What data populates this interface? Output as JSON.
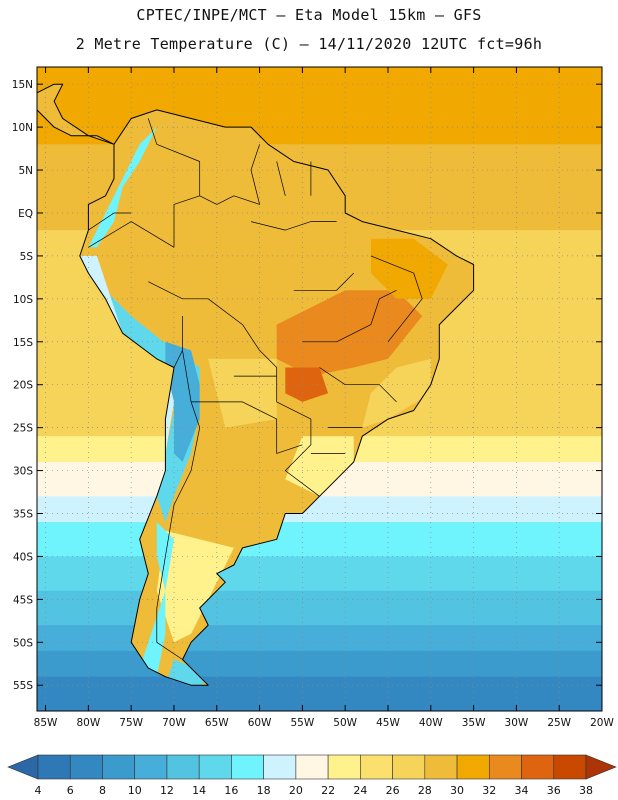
{
  "title_line1": "CPTEC/INPE/MCT –  Eta Model 15km – GFS",
  "title_line2": "2 Metre Temperature (C) – 14/11/2020 12UTC fct=96h",
  "map": {
    "lon_range": [
      -86,
      -20
    ],
    "lat_range": [
      -58,
      17
    ],
    "x_ticks": [
      {
        "lon": -85,
        "label": "85W"
      },
      {
        "lon": -80,
        "label": "80W"
      },
      {
        "lon": -75,
        "label": "75W"
      },
      {
        "lon": -70,
        "label": "70W"
      },
      {
        "lon": -65,
        "label": "65W"
      },
      {
        "lon": -60,
        "label": "60W"
      },
      {
        "lon": -55,
        "label": "55W"
      },
      {
        "lon": -50,
        "label": "50W"
      },
      {
        "lon": -45,
        "label": "45W"
      },
      {
        "lon": -40,
        "label": "40W"
      },
      {
        "lon": -35,
        "label": "35W"
      },
      {
        "lon": -30,
        "label": "30W"
      },
      {
        "lon": -25,
        "label": "25W"
      },
      {
        "lon": -20,
        "label": "20W"
      }
    ],
    "y_ticks": [
      {
        "lat": 15,
        "label": "15N"
      },
      {
        "lat": 10,
        "label": "10N"
      },
      {
        "lat": 5,
        "label": "5N"
      },
      {
        "lat": 0,
        "label": "EQ"
      },
      {
        "lat": -5,
        "label": "5S"
      },
      {
        "lat": -10,
        "label": "10S"
      },
      {
        "lat": -15,
        "label": "15S"
      },
      {
        "lat": -20,
        "label": "20S"
      },
      {
        "lat": -25,
        "label": "25S"
      },
      {
        "lat": -30,
        "label": "30S"
      },
      {
        "lat": -35,
        "label": "35S"
      },
      {
        "lat": -40,
        "label": "40S"
      },
      {
        "lat": -45,
        "label": "45S"
      },
      {
        "lat": -50,
        "label": "50S"
      },
      {
        "lat": -55,
        "label": "55S"
      }
    ],
    "ocean_bands": [
      {
        "lat_top": 17,
        "lat_bottom": 8,
        "temp": 30
      },
      {
        "lat_top": 8,
        "lat_bottom": -2,
        "temp": 28
      },
      {
        "lat_top": -2,
        "lat_bottom": -26,
        "temp": 26
      },
      {
        "lat_top": -26,
        "lat_bottom": -29,
        "temp": 22
      },
      {
        "lat_top": -29,
        "lat_bottom": -33,
        "temp": 20
      },
      {
        "lat_top": -33,
        "lat_bottom": -36,
        "temp": 18
      },
      {
        "lat_top": -36,
        "lat_bottom": -40,
        "temp": 16
      },
      {
        "lat_top": -40,
        "lat_bottom": -44,
        "temp": 14
      },
      {
        "lat_top": -44,
        "lat_bottom": -48,
        "temp": 12
      },
      {
        "lat_top": -48,
        "lat_bottom": -51,
        "temp": 10
      },
      {
        "lat_top": -51,
        "lat_bottom": -54,
        "temp": 8
      },
      {
        "lat_top": -54,
        "lat_bottom": -58,
        "temp": 6
      }
    ],
    "land_base_temp": 28,
    "land_regions": [
      {
        "name": "central-brazil-hot",
        "temp": 32,
        "points": [
          [
            -58,
            -13
          ],
          [
            -50,
            -9
          ],
          [
            -44,
            -9
          ],
          [
            -41,
            -12
          ],
          [
            -45,
            -17
          ],
          [
            -49,
            -18
          ],
          [
            -54,
            -19
          ],
          [
            -58,
            -17
          ]
        ]
      },
      {
        "name": "mato-grosso-sul-hot",
        "temp": 34,
        "points": [
          [
            -57,
            -18
          ],
          [
            -53,
            -18
          ],
          [
            -52,
            -21
          ],
          [
            -55,
            -22
          ],
          [
            -57,
            -21
          ]
        ]
      },
      {
        "name": "northeast-hot",
        "temp": 30,
        "points": [
          [
            -47,
            -3
          ],
          [
            -42,
            -3
          ],
          [
            -38,
            -6
          ],
          [
            -40,
            -10
          ],
          [
            -44,
            -10
          ],
          [
            -47,
            -7
          ]
        ]
      },
      {
        "name": "east-coast-warm",
        "temp": 26,
        "points": [
          [
            -44,
            -18
          ],
          [
            -40,
            -17
          ],
          [
            -40,
            -21
          ],
          [
            -45,
            -24
          ],
          [
            -48,
            -25
          ],
          [
            -47,
            -21
          ]
        ]
      },
      {
        "name": "southern-brazil",
        "temp": 22,
        "points": [
          [
            -55,
            -26
          ],
          [
            -49,
            -26
          ],
          [
            -49,
            -29
          ],
          [
            -53,
            -33
          ],
          [
            -57,
            -31
          ]
        ]
      },
      {
        "name": "patagonia-warm",
        "temp": 22,
        "points": [
          [
            -71,
            -37
          ],
          [
            -63,
            -39
          ],
          [
            -65,
            -43
          ],
          [
            -68,
            -49
          ],
          [
            -70,
            -50
          ],
          [
            -72,
            -44
          ]
        ]
      },
      {
        "name": "bolivia-chaco",
        "temp": 26,
        "points": [
          [
            -66,
            -17
          ],
          [
            -58,
            -17
          ],
          [
            -58,
            -24
          ],
          [
            -64,
            -25
          ]
        ]
      },
      {
        "name": "andes-north-cool",
        "temp": 16,
        "points": [
          [
            -79,
            -4
          ],
          [
            -77,
            -1
          ],
          [
            -76,
            3
          ],
          [
            -74,
            6
          ],
          [
            -72,
            10
          ],
          [
            -74,
            8
          ],
          [
            -76,
            4
          ],
          [
            -78,
            0
          ],
          [
            -80,
            -4
          ]
        ]
      },
      {
        "name": "andes-central-cool",
        "temp": 14,
        "points": [
          [
            -78,
            -9
          ],
          [
            -75,
            -12
          ],
          [
            -70,
            -16
          ],
          [
            -67,
            -18
          ],
          [
            -67,
            -23
          ],
          [
            -68,
            -28
          ],
          [
            -70,
            -33
          ],
          [
            -71,
            -36
          ],
          [
            -72,
            -33
          ],
          [
            -71,
            -28
          ],
          [
            -70,
            -23
          ],
          [
            -72,
            -18
          ],
          [
            -76,
            -14
          ],
          [
            -79,
            -10
          ]
        ]
      },
      {
        "name": "altiplano-cold",
        "temp": 10,
        "points": [
          [
            -71,
            -15
          ],
          [
            -68,
            -16
          ],
          [
            -67,
            -20
          ],
          [
            -67,
            -24
          ],
          [
            -69,
            -29
          ],
          [
            -70,
            -28
          ],
          [
            -70,
            -22
          ],
          [
            -71,
            -18
          ]
        ]
      },
      {
        "name": "patagonia-andes-cool",
        "temp": 16,
        "points": [
          [
            -72,
            -36
          ],
          [
            -70,
            -38
          ],
          [
            -71,
            -44
          ],
          [
            -73,
            -50
          ],
          [
            -74,
            -53
          ],
          [
            -72,
            -54
          ],
          [
            -71,
            -49
          ],
          [
            -71,
            -44
          ],
          [
            -72,
            -40
          ]
        ]
      },
      {
        "name": "tierra-del-fuego",
        "temp": 14,
        "points": [
          [
            -70,
            -52
          ],
          [
            -65,
            -54
          ],
          [
            -67,
            -55
          ],
          [
            -71,
            -55
          ]
        ]
      },
      {
        "name": "coastal-peru-cool",
        "temp": 18,
        "points": [
          [
            -81,
            -5
          ],
          [
            -79,
            -5
          ],
          [
            -76,
            -14
          ],
          [
            -71,
            -18
          ],
          [
            -70,
            -22
          ],
          [
            -71,
            -28
          ],
          [
            -72,
            -28
          ],
          [
            -71,
            -18
          ],
          [
            -77,
            -14
          ],
          [
            -80,
            -8
          ]
        ]
      }
    ],
    "continent": [
      [
        -77,
        8
      ],
      [
        -75,
        11
      ],
      [
        -72,
        12
      ],
      [
        -68,
        11
      ],
      [
        -64,
        10
      ],
      [
        -61,
        10
      ],
      [
        -59,
        8
      ],
      [
        -56,
        6
      ],
      [
        -52,
        5
      ],
      [
        -50,
        2
      ],
      [
        -50,
        0
      ],
      [
        -48,
        -1
      ],
      [
        -44,
        -2
      ],
      [
        -40,
        -3
      ],
      [
        -37,
        -5
      ],
      [
        -35,
        -6
      ],
      [
        -35,
        -9
      ],
      [
        -37,
        -11
      ],
      [
        -39,
        -13
      ],
      [
        -39,
        -17
      ],
      [
        -40,
        -20
      ],
      [
        -42,
        -23
      ],
      [
        -45,
        -24
      ],
      [
        -48,
        -26
      ],
      [
        -49,
        -29
      ],
      [
        -51,
        -31
      ],
      [
        -53,
        -33
      ],
      [
        -55,
        -35
      ],
      [
        -57,
        -35
      ],
      [
        -58,
        -38
      ],
      [
        -62,
        -39
      ],
      [
        -63,
        -41
      ],
      [
        -65,
        -42
      ],
      [
        -64,
        -43
      ],
      [
        -67,
        -46
      ],
      [
        -66,
        -48
      ],
      [
        -68,
        -50
      ],
      [
        -69,
        -52
      ],
      [
        -68,
        -53
      ],
      [
        -66,
        -55
      ],
      [
        -68,
        -55
      ],
      [
        -71,
        -54
      ],
      [
        -73,
        -53
      ],
      [
        -75,
        -50
      ],
      [
        -74,
        -45
      ],
      [
        -73,
        -42
      ],
      [
        -74,
        -38
      ],
      [
        -72,
        -33
      ],
      [
        -71,
        -30
      ],
      [
        -71,
        -24
      ],
      [
        -70,
        -18
      ],
      [
        -72,
        -17
      ],
      [
        -76,
        -14
      ],
      [
        -78,
        -10
      ],
      [
        -80,
        -7
      ],
      [
        -81,
        -5
      ],
      [
        -80,
        -2
      ],
      [
        -80,
        1
      ],
      [
        -78,
        2
      ],
      [
        -77,
        4
      ],
      [
        -77,
        6
      ]
    ],
    "central_america": [
      [
        -77,
        8
      ],
      [
        -79,
        9
      ],
      [
        -82,
        9
      ],
      [
        -84,
        10
      ],
      [
        -86,
        12
      ],
      [
        -86,
        14
      ],
      [
        -84,
        15
      ],
      [
        -83,
        15
      ],
      [
        -84,
        13
      ],
      [
        -83,
        11
      ],
      [
        -80,
        9
      ]
    ],
    "borders": [
      [
        [
          -73,
          11
        ],
        [
          -72,
          8
        ],
        [
          -67,
          6
        ],
        [
          -67,
          2
        ],
        [
          -70,
          1
        ],
        [
          -70,
          -4
        ]
      ],
      [
        [
          -60,
          8
        ],
        [
          -61,
          5
        ],
        [
          -60,
          1
        ],
        [
          -63,
          2
        ],
        [
          -65,
          1
        ],
        [
          -67,
          2
        ]
      ],
      [
        [
          -58,
          6
        ],
        [
          -57,
          2
        ]
      ],
      [
        [
          -54,
          6
        ],
        [
          -54,
          2
        ]
      ],
      [
        [
          -80,
          -2
        ],
        [
          -77,
          0
        ],
        [
          -75,
          0
        ]
      ],
      [
        [
          -80,
          -4
        ],
        [
          -75,
          -1
        ],
        [
          -70,
          -4
        ]
      ],
      [
        [
          -73,
          -8
        ],
        [
          -69,
          -10
        ],
        [
          -66,
          -10
        ],
        [
          -62,
          -13
        ],
        [
          -60,
          -16
        ],
        [
          -58,
          -18
        ],
        [
          -58,
          -22
        ],
        [
          -54,
          -24
        ],
        [
          -54,
          -26
        ],
        [
          -54,
          -27
        ],
        [
          -57,
          -30
        ],
        [
          -53,
          -33
        ]
      ],
      [
        [
          -69,
          -12
        ],
        [
          -69,
          -16
        ],
        [
          -68,
          -22
        ]
      ],
      [
        [
          -68,
          -22
        ],
        [
          -62,
          -22
        ],
        [
          -58,
          -24
        ],
        [
          -58,
          -28
        ],
        [
          -55,
          -27
        ]
      ],
      [
        [
          -68,
          -22
        ],
        [
          -67,
          -25
        ],
        [
          -68,
          -30
        ],
        [
          -70,
          -34
        ],
        [
          -71,
          -40
        ],
        [
          -72,
          -46
        ],
        [
          -72,
          -50
        ],
        [
          -69,
          -52
        ]
      ],
      [
        [
          -63,
          -19
        ],
        [
          -58,
          -19
        ]
      ],
      [
        [
          -70,
          -18
        ],
        [
          -69,
          -16
        ]
      ],
      [
        [
          -55,
          -15
        ],
        [
          -51,
          -15
        ],
        [
          -47,
          -13
        ],
        [
          -46,
          -10
        ],
        [
          -44,
          -9
        ]
      ],
      [
        [
          -47,
          -5
        ],
        [
          -42,
          -7
        ],
        [
          -41,
          -10
        ],
        [
          -45,
          -15
        ]
      ],
      [
        [
          -53,
          -18
        ],
        [
          -50,
          -20
        ],
        [
          -46,
          -20
        ],
        [
          -44,
          -22
        ]
      ],
      [
        [
          -61,
          -1
        ],
        [
          -57,
          -2
        ],
        [
          -54,
          -1
        ],
        [
          -51,
          -1
        ]
      ],
      [
        [
          -56,
          -9
        ],
        [
          -51,
          -9
        ],
        [
          -49,
          -7
        ]
      ],
      [
        [
          -52,
          -25
        ],
        [
          -48,
          -25
        ]
      ],
      [
        [
          -54,
          -28
        ],
        [
          -50,
          -28
        ]
      ]
    ]
  },
  "colorbar": {
    "levels": [
      4,
      6,
      8,
      10,
      12,
      14,
      16,
      18,
      20,
      22,
      24,
      26,
      28,
      30,
      32,
      34,
      36,
      38
    ],
    "labels": [
      "4",
      "6",
      "8",
      "10",
      "12",
      "14",
      "16",
      "18",
      "20",
      "22",
      "24",
      "26",
      "28",
      "30",
      "32",
      "34",
      "36",
      "38"
    ],
    "colors": [
      "#2c68a8",
      "#2f78b6",
      "#3488c2",
      "#3a9bcc",
      "#46aed8",
      "#52c4e2",
      "#60d8ec",
      "#6ff3fc",
      "#cff2ff",
      "#fff6e4",
      "#fff28c",
      "#fbe06e",
      "#f6d45a",
      "#efbc3a",
      "#f1a800",
      "#ea8a1e",
      "#de6410",
      "#c84800",
      "#ad3406"
    ]
  }
}
